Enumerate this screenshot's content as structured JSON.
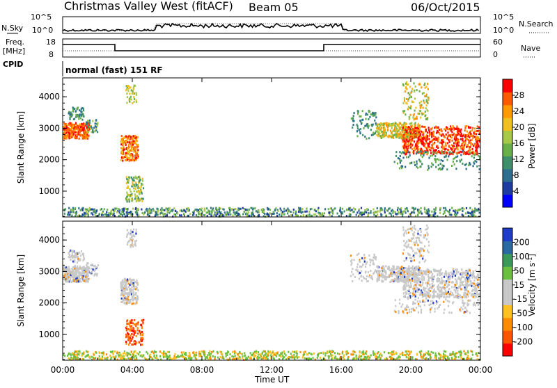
{
  "header": {
    "station": "Christmas Valley West (fitACF)",
    "beam": "Beam 05",
    "date": "06/Oct/2015"
  },
  "top_panels": {
    "nsky_label": "N.Sky",
    "nsky_ticks": [
      "10^5",
      "10^0"
    ],
    "nsearch_label": "N.Search",
    "nsearch_ticks": [
      "10^5",
      "10^0"
    ],
    "freq_label": "Freq.",
    "freq_unit": "[MHz]",
    "freq_ticks": [
      "18",
      "8"
    ],
    "nave_label": "Nave",
    "nave_ticks": [
      "60",
      "0"
    ],
    "cpid_label": "CPID",
    "cpid_value": "normal (fast) 151 RF"
  },
  "chart_data": [
    {
      "type": "heatmap",
      "name": "power",
      "ylabel": "Slant Range [km]",
      "xlabel": "Time UT",
      "x_ticks": [
        "00:00",
        "04:00",
        "08:00",
        "12:00",
        "16:00",
        "20:00",
        "00:00"
      ],
      "y_ticks": [
        "4000",
        "3000",
        "2000",
        "1000"
      ],
      "ylim": [
        180,
        4600
      ],
      "colorbar": {
        "label": "Power [dB]",
        "ticks": [
          "28",
          "24",
          "20",
          "16",
          "12",
          "8",
          "4"
        ],
        "colors": [
          "#0000ff",
          "#1e3ca0",
          "#2e6e8e",
          "#3f8f6a",
          "#6ab04a",
          "#a8c84a",
          "#f0c020",
          "#ff9a00",
          "#ff5a00",
          "#ff0000"
        ]
      }
    },
    {
      "type": "heatmap",
      "name": "velocity",
      "ylabel": "Slant Range [km]",
      "xlabel": "Time UT",
      "x_ticks": [
        "00:00",
        "04:00",
        "08:00",
        "12:00",
        "16:00",
        "20:00",
        "00:00"
      ],
      "y_ticks": [
        "4000",
        "3000",
        "2000",
        "1000"
      ],
      "ylim": [
        180,
        4600
      ],
      "colorbar": {
        "label": "Velocity [m s",
        "label_sup": "-1",
        "label_end": "]",
        "ticks": [
          "200",
          "100",
          "50",
          "15",
          "-15",
          "-50",
          "-100",
          "-200"
        ],
        "colors": [
          "#ff0000",
          "#ff5500",
          "#ff8c00",
          "#ffc020",
          "#c8c8c8",
          "#c8c8c8",
          "#6cc040",
          "#3a9a5a",
          "#2a6aa0",
          "#1e3cc8"
        ]
      }
    }
  ],
  "time_axis_label": "Time UT"
}
